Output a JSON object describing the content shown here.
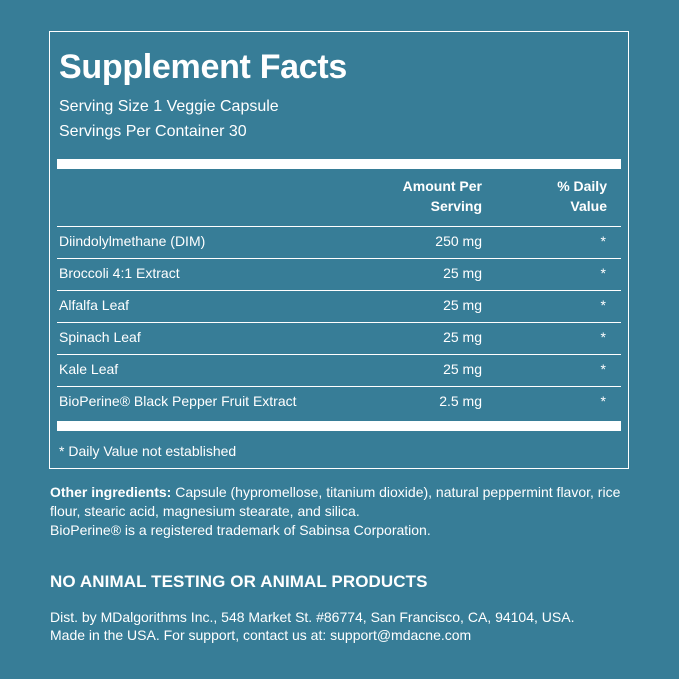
{
  "panel": {
    "title": "Supplement Facts",
    "serving_size": "Serving Size 1 Veggie Capsule",
    "servings_per_container": "Servings Per Container 30",
    "header_amount_line1": "Amount Per",
    "header_amount_line2": "Serving",
    "header_dv_line1": "% Daily",
    "header_dv_line2": "Value",
    "rows": [
      {
        "name": "Diindolylmethane (DIM)",
        "amount": "250 mg",
        "dv": "*"
      },
      {
        "name": "Broccoli 4:1 Extract",
        "amount": "25 mg",
        "dv": "*"
      },
      {
        "name": "Alfalfa Leaf",
        "amount": "25 mg",
        "dv": "*"
      },
      {
        "name": "Spinach Leaf",
        "amount": "25 mg",
        "dv": "*"
      },
      {
        "name": "Kale Leaf",
        "amount": "25 mg",
        "dv": "*"
      },
      {
        "name": "BioPerine® Black Pepper Fruit Extract",
        "amount": "2.5 mg",
        "dv": "*"
      }
    ],
    "footnote": "* Daily Value not established"
  },
  "other": {
    "label": "Other ingredients:",
    "text": " Capsule (hypromellose, titanium dioxide), natural peppermint flavor, rice flour, stearic acid, magnesium stearate, and silica.",
    "trademark": "BioPerine® is a registered trademark of Sabinsa Corporation."
  },
  "claim": "NO ANIMAL TESTING OR ANIMAL PRODUCTS",
  "dist": {
    "line1": "Dist. by MDalgorithms Inc., 548 Market St. #86774, San Francisco, CA, 94104, USA.",
    "line2": "Made in the USA. For support, contact us at: support@mdacne.com"
  }
}
